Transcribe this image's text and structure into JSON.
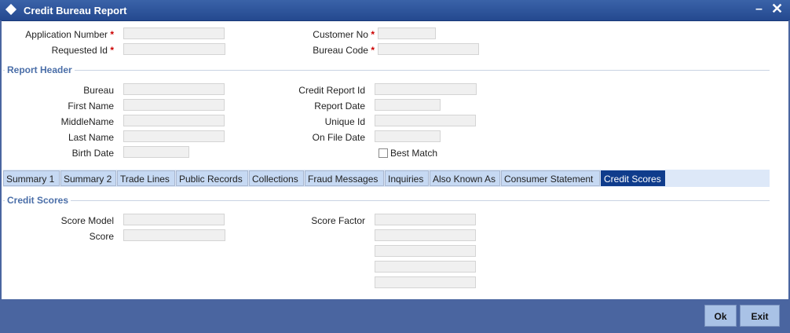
{
  "window": {
    "title": "Credit Bureau Report",
    "minimize": "–",
    "close": "✕"
  },
  "top": {
    "application_number": "Application Number",
    "requested_id": "Requested Id",
    "customer_no": "Customer No",
    "bureau_code": "Bureau Code",
    "required": "*"
  },
  "report_header": {
    "legend": "Report Header",
    "bureau": "Bureau",
    "first_name": "First Name",
    "middle_name": "MiddleName",
    "last_name": "Last Name",
    "birth_date": "Birth Date",
    "credit_report_id": "Credit Report Id",
    "report_date": "Report Date",
    "unique_id": "Unique Id",
    "on_file_date": "On File Date",
    "best_match": "Best Match"
  },
  "tabs": [
    "Summary 1",
    "Summary 2",
    "Trade Lines",
    "Public Records",
    "Collections",
    "Fraud Messages",
    "Inquiries",
    "Also Known As",
    "Consumer Statement",
    "Credit Scores"
  ],
  "active_tab": "Credit Scores",
  "credit_scores": {
    "legend": "Credit Scores",
    "score_model": "Score Model",
    "score": "Score",
    "score_factor": "Score Factor"
  },
  "buttons": {
    "ok": "Ok",
    "exit": "Exit"
  }
}
